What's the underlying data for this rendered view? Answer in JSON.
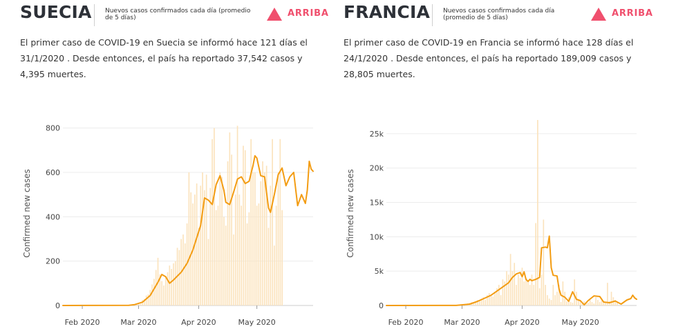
{
  "panels": [
    {
      "country": "SUECIA",
      "subtitle": "Nuevos casos confirmados cada día (promedio de 5 días)",
      "trend": "ARRIBA",
      "summary": "El primer caso de COVID-19 en Suecia se informó hace 121 días el 31/1/2020 . Desde entonces, el país ha reportado 37,542 casos y 4,395 muertes.",
      "colors": {
        "trend": "#f0506e",
        "bar": "#fbe3bd",
        "line": "#f39c12"
      }
    },
    {
      "country": "FRANCIA",
      "subtitle": "Nuevos casos confirmados cada día (promedio de 5 días)",
      "trend": "ARRIBA",
      "summary": "El primer caso de COVID-19 en Francia se informó hace 128 días el 24/1/2020 . Desde entonces, el país ha reportado 189,009 casos y 28,805 muertes.",
      "colors": {
        "trend": "#f0506e",
        "bar": "#fbe3bd",
        "line": "#f39c12"
      }
    }
  ],
  "chart_data": [
    {
      "type": "bar+line",
      "x_start": "2020-01-22",
      "x_end": "2020-05-30",
      "xticks": [
        {
          "date": "2020-02-01",
          "label": "Feb 2020"
        },
        {
          "date": "2020-03-01",
          "label": "Mar 2020"
        },
        {
          "date": "2020-04-01",
          "label": "Apr 2020"
        },
        {
          "date": "2020-05-01",
          "label": "May 2020"
        }
      ],
      "yticks": [
        0,
        200,
        400,
        600,
        800
      ],
      "ylim": [
        0,
        830
      ],
      "ylabel": "Confirmed new cases",
      "tick_format": "plain",
      "daily_first_date": "2020-02-27",
      "daily_values": [
        0,
        5,
        8,
        10,
        8,
        25,
        30,
        45,
        50,
        70,
        95,
        120,
        160,
        215,
        140,
        110,
        90,
        130,
        150,
        180,
        165,
        190,
        200,
        260,
        250,
        300,
        320,
        280,
        370,
        600,
        510,
        460,
        500,
        550,
        350,
        540,
        600,
        520,
        590,
        300,
        530,
        750,
        800,
        430,
        450,
        600,
        580,
        400,
        360,
        650,
        780,
        680,
        320,
        500,
        810,
        500,
        450,
        720,
        700,
        370,
        420,
        750,
        600,
        600,
        450,
        460,
        560,
        650,
        600,
        630,
        350,
        540,
        750,
        270,
        450,
        600,
        750,
        430
      ],
      "line_points": [
        [
          "2020-01-22",
          0
        ],
        [
          "2020-02-25",
          1
        ],
        [
          "2020-02-28",
          4
        ],
        [
          "2020-03-03",
          15
        ],
        [
          "2020-03-07",
          45
        ],
        [
          "2020-03-11",
          105
        ],
        [
          "2020-03-13",
          140
        ],
        [
          "2020-03-15",
          130
        ],
        [
          "2020-03-17",
          100
        ],
        [
          "2020-03-19",
          115
        ],
        [
          "2020-03-23",
          150
        ],
        [
          "2020-03-26",
          190
        ],
        [
          "2020-03-29",
          250
        ],
        [
          "2020-04-02",
          360
        ],
        [
          "2020-04-04",
          485
        ],
        [
          "2020-04-06",
          475
        ],
        [
          "2020-04-08",
          455
        ],
        [
          "2020-04-10",
          545
        ],
        [
          "2020-04-12",
          585
        ],
        [
          "2020-04-14",
          520
        ],
        [
          "2020-04-15",
          465
        ],
        [
          "2020-04-17",
          455
        ],
        [
          "2020-04-19",
          510
        ],
        [
          "2020-04-21",
          570
        ],
        [
          "2020-04-23",
          580
        ],
        [
          "2020-04-25",
          550
        ],
        [
          "2020-04-27",
          560
        ],
        [
          "2020-04-29",
          630
        ],
        [
          "2020-04-30",
          675
        ],
        [
          "2020-05-01",
          665
        ],
        [
          "2020-05-03",
          585
        ],
        [
          "2020-05-05",
          580
        ],
        [
          "2020-05-07",
          440
        ],
        [
          "2020-05-08",
          420
        ],
        [
          "2020-05-10",
          500
        ],
        [
          "2020-05-12",
          590
        ],
        [
          "2020-05-14",
          620
        ],
        [
          "2020-05-16",
          540
        ],
        [
          "2020-05-18",
          580
        ],
        [
          "2020-05-20",
          600
        ],
        [
          "2020-05-22",
          450
        ],
        [
          "2020-05-24",
          500
        ],
        [
          "2020-05-26",
          460
        ],
        [
          "2020-05-27",
          520
        ],
        [
          "2020-05-28",
          650
        ],
        [
          "2020-05-29",
          615
        ],
        [
          "2020-05-30",
          605
        ]
      ]
    },
    {
      "type": "bar+line",
      "x_start": "2020-01-22",
      "x_end": "2020-05-30",
      "xticks": [
        {
          "date": "2020-02-01",
          "label": "Feb 2020"
        },
        {
          "date": "2020-03-01",
          "label": "Mar 2020"
        },
        {
          "date": "2020-04-01",
          "label": "Apr 2020"
        },
        {
          "date": "2020-05-01",
          "label": "May 2020"
        }
      ],
      "yticks": [
        0,
        5000,
        10000,
        15000,
        20000,
        25000
      ],
      "ylim": [
        0,
        26800
      ],
      "ylabel": "Confirmed new cases",
      "tick_format": "k",
      "daily_first_date": "2020-03-03",
      "daily_values": [
        200,
        300,
        400,
        500,
        300,
        600,
        800,
        700,
        1000,
        1200,
        800,
        1500,
        1800,
        1400,
        1300,
        2000,
        2500,
        3000,
        1500,
        3800,
        3500,
        5000,
        4500,
        7500,
        5000,
        6200,
        3000,
        4500,
        4000,
        5500,
        3500,
        4000,
        3500,
        3000,
        4500,
        3000,
        12000,
        27000,
        2500,
        4500,
        12500,
        3000,
        1500,
        1000,
        800,
        3000,
        1500,
        2000,
        3000,
        500,
        3500,
        2000,
        600,
        1200,
        500,
        400,
        3800,
        2000,
        800,
        700,
        300,
        600,
        500,
        400,
        800,
        500,
        300,
        1200,
        800,
        500,
        700,
        600,
        400,
        3300,
        600,
        2000,
        1200,
        800,
        500
      ],
      "line_points": [
        [
          "2020-01-22",
          0
        ],
        [
          "2020-02-27",
          10
        ],
        [
          "2020-03-05",
          200
        ],
        [
          "2020-03-09",
          600
        ],
        [
          "2020-03-13",
          1100
        ],
        [
          "2020-03-16",
          1500
        ],
        [
          "2020-03-19",
          2100
        ],
        [
          "2020-03-22",
          2700
        ],
        [
          "2020-03-25",
          3300
        ],
        [
          "2020-03-27",
          4100
        ],
        [
          "2020-03-29",
          4600
        ],
        [
          "2020-03-31",
          4800
        ],
        [
          "2020-04-01",
          4200
        ],
        [
          "2020-04-02",
          4900
        ],
        [
          "2020-04-03",
          3800
        ],
        [
          "2020-04-04",
          3500
        ],
        [
          "2020-04-05",
          3800
        ],
        [
          "2020-04-06",
          3600
        ],
        [
          "2020-04-08",
          3800
        ],
        [
          "2020-04-10",
          4100
        ],
        [
          "2020-04-11",
          8400
        ],
        [
          "2020-04-13",
          8500
        ],
        [
          "2020-04-14",
          8400
        ],
        [
          "2020-04-15",
          10100
        ],
        [
          "2020-04-16",
          5500
        ],
        [
          "2020-04-17",
          4400
        ],
        [
          "2020-04-19",
          4300
        ],
        [
          "2020-04-20",
          2400
        ],
        [
          "2020-04-21",
          1500
        ],
        [
          "2020-04-23",
          1200
        ],
        [
          "2020-04-25",
          600
        ],
        [
          "2020-04-27",
          2000
        ],
        [
          "2020-04-29",
          900
        ],
        [
          "2020-05-01",
          700
        ],
        [
          "2020-05-03",
          100
        ],
        [
          "2020-05-05",
          700
        ],
        [
          "2020-05-08",
          1400
        ],
        [
          "2020-05-11",
          1300
        ],
        [
          "2020-05-13",
          500
        ],
        [
          "2020-05-16",
          400
        ],
        [
          "2020-05-19",
          650
        ],
        [
          "2020-05-22",
          200
        ],
        [
          "2020-05-25",
          800
        ],
        [
          "2020-05-27",
          1000
        ],
        [
          "2020-05-28",
          1500
        ],
        [
          "2020-05-29",
          1100
        ],
        [
          "2020-05-30",
          900
        ]
      ]
    }
  ]
}
